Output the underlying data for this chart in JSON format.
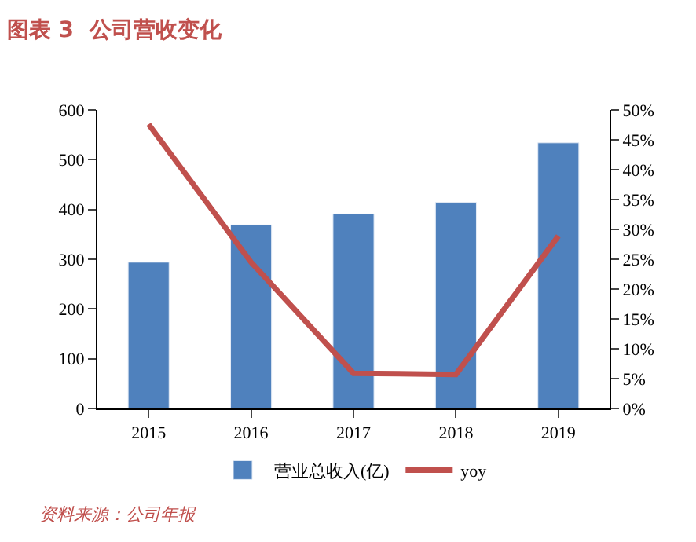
{
  "chart_data": {
    "type": "bar",
    "title": "图表 3  公司营收变化",
    "categories": [
      "2015",
      "2016",
      "2017",
      "2018",
      "2019"
    ],
    "series": [
      {
        "name": "营业总收入(亿)",
        "color": "#4f81bd",
        "values": [
          294,
          369,
          391,
          414,
          534
        ]
      },
      {
        "name": "yoy",
        "type": "line",
        "axis": "y2",
        "color": "#c0504d",
        "values": [
          47.6,
          24.5,
          5.9,
          5.7,
          28.9
        ],
        "marker": "none"
      }
    ],
    "ylim": [
      0,
      600
    ],
    "yticks": [
      0,
      100,
      200,
      300,
      400,
      500,
      600
    ],
    "y2lim": [
      0,
      50
    ],
    "y2ticks": [
      {
        "value": 0,
        "label": "0%"
      },
      {
        "value": 5,
        "label": "5%"
      },
      {
        "value": 10,
        "label": "10%"
      },
      {
        "value": 15,
        "label": "15%"
      },
      {
        "value": 20,
        "label": "20%"
      },
      {
        "value": 25,
        "label": "25%"
      },
      {
        "value": 30,
        "label": "30%"
      },
      {
        "value": 35,
        "label": "35%"
      },
      {
        "value": 40,
        "label": "40%"
      },
      {
        "value": 45,
        "label": "45%"
      },
      {
        "value": 50,
        "label": "50%"
      }
    ],
    "legend": "bottom",
    "annotations": [
      "资料来源：公司年报"
    ]
  }
}
